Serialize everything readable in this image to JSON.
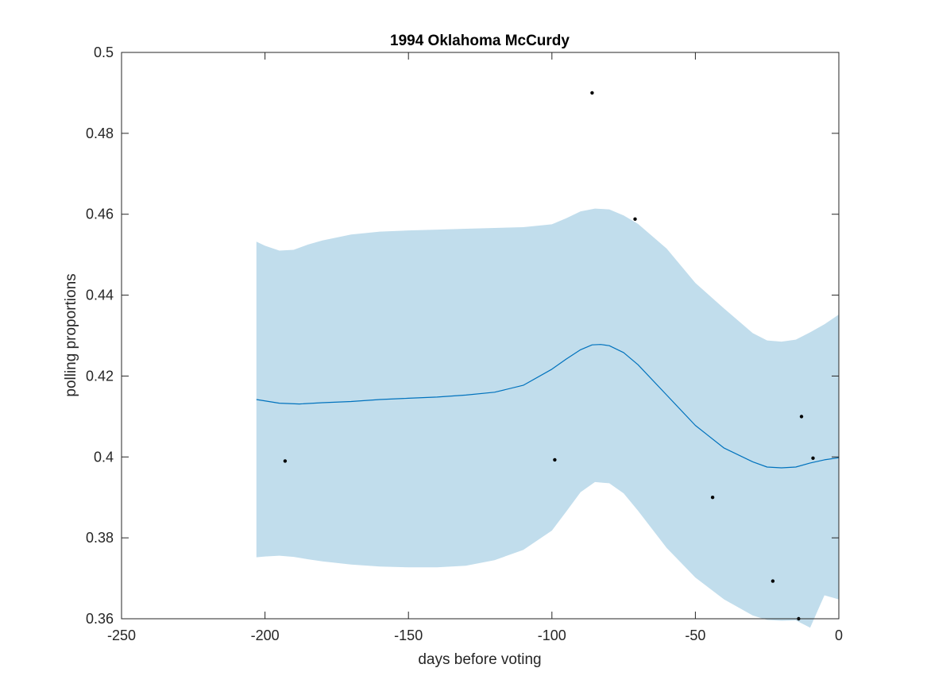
{
  "chart_data": {
    "type": "line",
    "title": "1994 Oklahoma McCurdy",
    "xlabel": "days before voting",
    "ylabel": "polling proportions",
    "xlim": [
      -250,
      0
    ],
    "ylim": [
      0.36,
      0.5
    ],
    "xticks": [
      -250,
      -200,
      -150,
      -100,
      -50,
      0
    ],
    "yticks": [
      0.36,
      0.38,
      0.4,
      0.42,
      0.44,
      0.46,
      0.48,
      0.5
    ],
    "xtick_labels": [
      "-250",
      "-200",
      "-150",
      "-100",
      "-50",
      "0"
    ],
    "ytick_labels": [
      "0.36",
      "0.38",
      "0.4",
      "0.42",
      "0.44",
      "0.46",
      "0.48",
      "0.5"
    ],
    "grid": false,
    "fit_line": {
      "x": [
        -203,
        -195,
        -188,
        -180,
        -170,
        -160,
        -150,
        -140,
        -130,
        -120,
        -110,
        -100,
        -95,
        -90,
        -86,
        -83,
        -80,
        -75,
        -70,
        -60,
        -50,
        -40,
        -30,
        -25,
        -20,
        -15,
        -10,
        -5,
        0
      ],
      "y": [
        0.4142,
        0.4133,
        0.4131,
        0.4134,
        0.4137,
        0.4142,
        0.4145,
        0.4148,
        0.4153,
        0.416,
        0.4177,
        0.4217,
        0.4242,
        0.4265,
        0.4277,
        0.4278,
        0.4275,
        0.4258,
        0.4228,
        0.4153,
        0.4078,
        0.4022,
        0.3988,
        0.3975,
        0.3973,
        0.3975,
        0.3985,
        0.3993,
        0.3998
      ]
    },
    "band_upper": {
      "x": [
        -203,
        -200,
        -195,
        -190,
        -185,
        -180,
        -170,
        -160,
        -150,
        -140,
        -130,
        -120,
        -110,
        -100,
        -95,
        -90,
        -85,
        -80,
        -75,
        -70,
        -60,
        -50,
        -40,
        -30,
        -25,
        -20,
        -15,
        -10,
        -5,
        0
      ],
      "y": [
        0.4532,
        0.4522,
        0.451,
        0.4512,
        0.4525,
        0.4535,
        0.455,
        0.4557,
        0.456,
        0.4562,
        0.4564,
        0.4566,
        0.4568,
        0.4575,
        0.459,
        0.4607,
        0.4614,
        0.4612,
        0.4597,
        0.4576,
        0.4515,
        0.443,
        0.4367,
        0.4306,
        0.4288,
        0.4285,
        0.429,
        0.4308,
        0.4328,
        0.4352
      ]
    },
    "band_lower": {
      "x": [
        -203,
        -200,
        -195,
        -190,
        -185,
        -180,
        -170,
        -160,
        -150,
        -140,
        -130,
        -120,
        -110,
        -100,
        -95,
        -90,
        -85,
        -80,
        -75,
        -70,
        -60,
        -50,
        -40,
        -30,
        -25,
        -20,
        -15,
        -10,
        -5,
        0
      ],
      "y": [
        0.3752,
        0.3754,
        0.3756,
        0.3753,
        0.3747,
        0.3742,
        0.3734,
        0.3729,
        0.3727,
        0.3727,
        0.3731,
        0.3745,
        0.377,
        0.3818,
        0.3865,
        0.3913,
        0.3938,
        0.3935,
        0.391,
        0.3867,
        0.3775,
        0.3702,
        0.3648,
        0.3608,
        0.3597,
        0.3595,
        0.3596,
        0.3578,
        0.3658,
        0.3648
      ]
    },
    "scatter": {
      "x": [
        -193,
        -99,
        -86,
        -71,
        -44,
        -23,
        -14,
        -13,
        -9
      ],
      "y": [
        0.399,
        0.3993,
        0.49,
        0.4588,
        0.39,
        0.3693,
        0.36,
        0.41,
        0.3997
      ]
    },
    "colors": {
      "line": "#0072bd",
      "band": "#c1ddec",
      "points": "#000000",
      "axis": "#262626"
    }
  }
}
